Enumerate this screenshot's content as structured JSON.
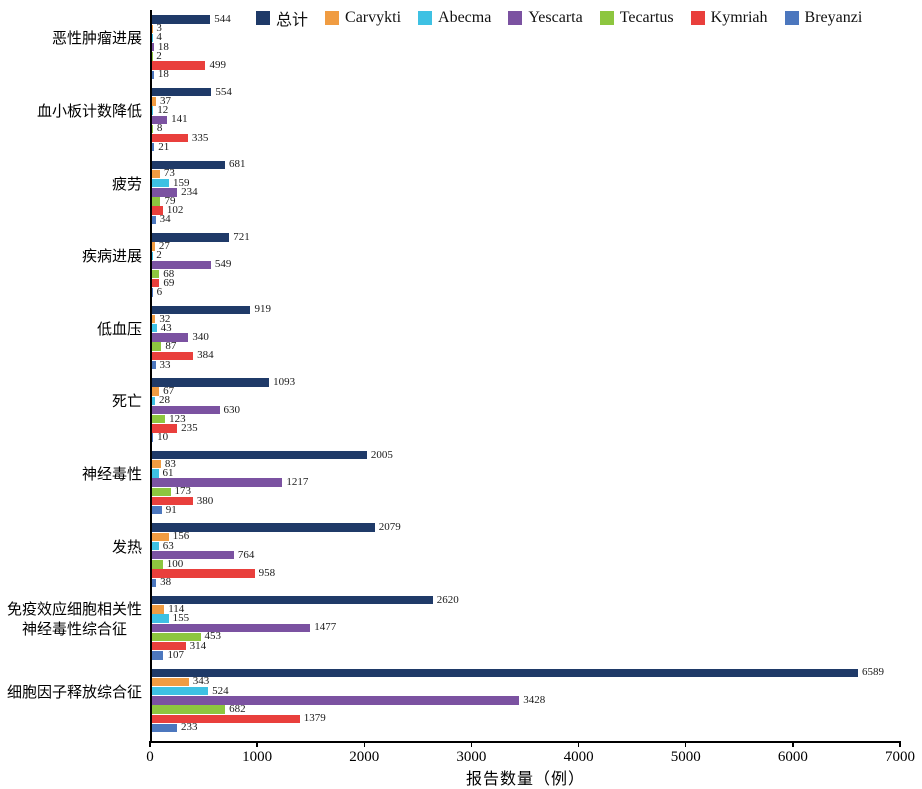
{
  "chart_data": {
    "type": "bar",
    "orientation": "horizontal",
    "xlabel": "报告数量（例）",
    "xlim": [
      0,
      7000
    ],
    "xticks": [
      0,
      1000,
      2000,
      3000,
      4000,
      5000,
      6000,
      7000
    ],
    "grid": false,
    "legend_position": "top",
    "categories": [
      "恶性肿瘤进展",
      "血小板计数降低",
      "疲劳",
      "疾病进展",
      "低血压",
      "死亡",
      "神经毒性",
      "发热",
      "免疫效应细胞相关性\n神经毒性综合征",
      "细胞因子释放综合征"
    ],
    "series": [
      {
        "key": "total",
        "name": "总计",
        "color": "#1F3A68",
        "values": [
          544,
          554,
          681,
          721,
          919,
          1093,
          2005,
          2079,
          2620,
          6589
        ]
      },
      {
        "key": "carvykti",
        "name": "Carvykti",
        "color": "#F09C42",
        "values": [
          3,
          37,
          73,
          27,
          32,
          67,
          83,
          156,
          114,
          343
        ]
      },
      {
        "key": "abecma",
        "name": "Abecma",
        "color": "#3EC1E3",
        "values": [
          4,
          12,
          159,
          2,
          43,
          28,
          61,
          63,
          155,
          524
        ]
      },
      {
        "key": "yescarta",
        "name": "Yescarta",
        "color": "#7B52A1",
        "values": [
          18,
          141,
          234,
          549,
          340,
          630,
          1217,
          764,
          1477,
          3428
        ]
      },
      {
        "key": "tecartus",
        "name": "Tecartus",
        "color": "#8DC63F",
        "values": [
          2,
          8,
          79,
          68,
          87,
          123,
          173,
          100,
          453,
          682
        ]
      },
      {
        "key": "kymriah",
        "name": "Kymriah",
        "color": "#E93F3C",
        "values": [
          499,
          335,
          102,
          69,
          384,
          235,
          380,
          958,
          314,
          1379
        ]
      },
      {
        "key": "breyanzi",
        "name": "Breyanzi",
        "color": "#4C77BE",
        "values": [
          18,
          21,
          34,
          6,
          33,
          10,
          91,
          38,
          107,
          233
        ]
      }
    ]
  }
}
